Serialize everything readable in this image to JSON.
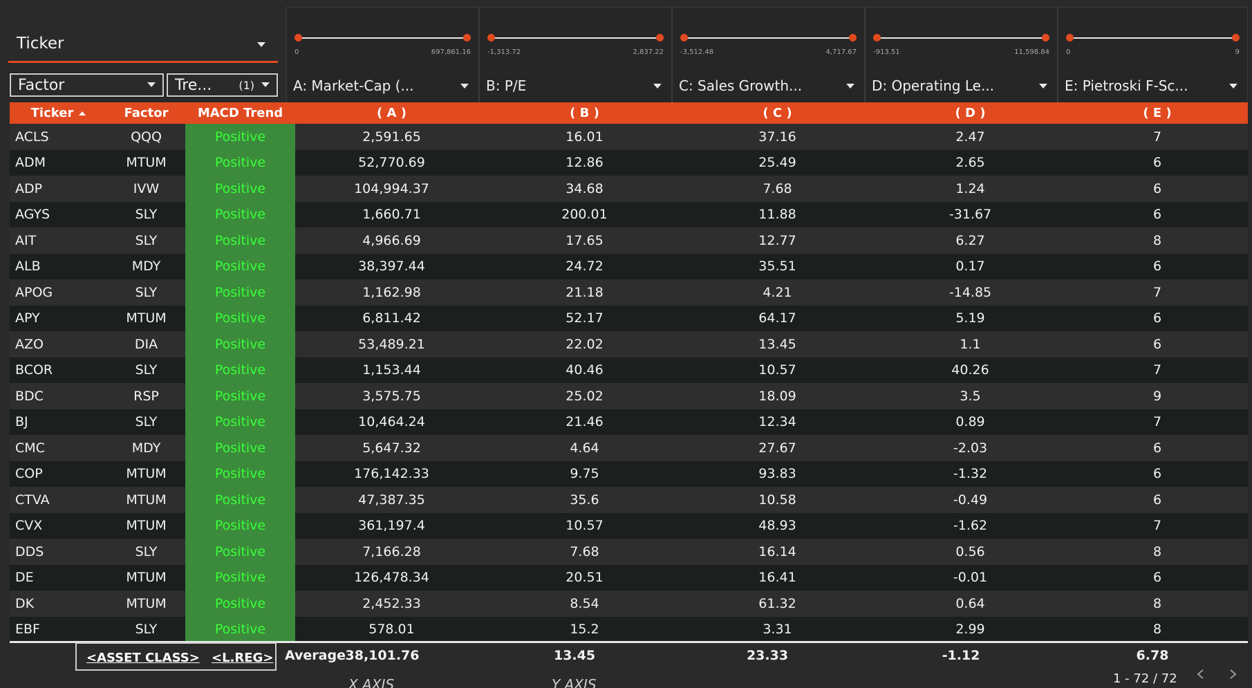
{
  "controls": {
    "ticker_label": "Ticker",
    "factor_label": "Factor",
    "trend_label": "Tre...",
    "trend_count": "(1)"
  },
  "sliders": [
    {
      "label": "A: Market-Cap (...",
      "min": "0",
      "max": "697,861.16"
    },
    {
      "label": "B: P/E",
      "min": "-1,313.72",
      "max": "2,837.22"
    },
    {
      "label": "C: Sales Growth...",
      "min": "-3,512.48",
      "max": "4,717.67"
    },
    {
      "label": "D: Operating Le...",
      "min": "-913.51",
      "max": "11,598.84"
    },
    {
      "label": "E: Pietroski F-Sc...",
      "min": "0",
      "max": "9"
    }
  ],
  "table": {
    "headers": [
      "Ticker",
      "Factor",
      "MACD Trend",
      "( A )",
      "( B )",
      "( C )",
      "( D )",
      "( E )"
    ],
    "rows": [
      [
        "ACLS",
        "QQQ",
        "Positive",
        "2,591.65",
        "16.01",
        "37.16",
        "2.47",
        "7"
      ],
      [
        "ADM",
        "MTUM",
        "Positive",
        "52,770.69",
        "12.86",
        "25.49",
        "2.65",
        "6"
      ],
      [
        "ADP",
        "IVW",
        "Positive",
        "104,994.37",
        "34.68",
        "7.68",
        "1.24",
        "6"
      ],
      [
        "AGYS",
        "SLY",
        "Positive",
        "1,660.71",
        "200.01",
        "11.88",
        "-31.67",
        "6"
      ],
      [
        "AIT",
        "SLY",
        "Positive",
        "4,966.69",
        "17.65",
        "12.77",
        "6.27",
        "8"
      ],
      [
        "ALB",
        "MDY",
        "Positive",
        "38,397.44",
        "24.72",
        "35.51",
        "0.17",
        "6"
      ],
      [
        "APOG",
        "SLY",
        "Positive",
        "1,162.98",
        "21.18",
        "4.21",
        "-14.85",
        "7"
      ],
      [
        "APY",
        "MTUM",
        "Positive",
        "6,811.42",
        "52.17",
        "64.17",
        "5.19",
        "6"
      ],
      [
        "AZO",
        "DIA",
        "Positive",
        "53,489.21",
        "22.02",
        "13.45",
        "1.1",
        "6"
      ],
      [
        "BCOR",
        "SLY",
        "Positive",
        "1,153.44",
        "40.46",
        "10.57",
        "40.26",
        "7"
      ],
      [
        "BDC",
        "RSP",
        "Positive",
        "3,575.75",
        "25.02",
        "18.09",
        "3.5",
        "9"
      ],
      [
        "BJ",
        "SLY",
        "Positive",
        "10,464.24",
        "21.46",
        "12.34",
        "0.89",
        "7"
      ],
      [
        "CMC",
        "MDY",
        "Positive",
        "5,647.32",
        "4.64",
        "27.67",
        "-2.03",
        "6"
      ],
      [
        "COP",
        "MTUM",
        "Positive",
        "176,142.33",
        "9.75",
        "93.83",
        "-1.32",
        "6"
      ],
      [
        "CTVA",
        "MTUM",
        "Positive",
        "47,387.35",
        "35.6",
        "10.58",
        "-0.49",
        "6"
      ],
      [
        "CVX",
        "MTUM",
        "Positive",
        "361,197.4",
        "10.57",
        "48.93",
        "-1.62",
        "7"
      ],
      [
        "DDS",
        "SLY",
        "Positive",
        "7,166.28",
        "7.68",
        "16.14",
        "0.56",
        "8"
      ],
      [
        "DE",
        "MTUM",
        "Positive",
        "126,478.34",
        "20.51",
        "16.41",
        "-0.01",
        "6"
      ],
      [
        "DK",
        "MTUM",
        "Positive",
        "2,452.33",
        "8.54",
        "61.32",
        "0.64",
        "8"
      ],
      [
        "EBF",
        "SLY",
        "Positive",
        "578.01",
        "15.2",
        "3.31",
        "2.99",
        "8"
      ]
    ]
  },
  "footer": {
    "asset_class_link": "<ASSET CLASS>",
    "lreg_link": "<L.REG>",
    "average_label": "Average",
    "averages": [
      "38,101.76",
      "13.45",
      "23.33",
      "-1.12",
      "6.78"
    ],
    "pager": "1 - 72 / 72",
    "x_axis_label": "X AXIS",
    "y_axis_label": "Y AXIS"
  },
  "colors": {
    "accent": "#e24a1f",
    "positive_bg": "#3c8a3c",
    "positive_text": "#3aff3a",
    "background": "#2a2a2a"
  }
}
